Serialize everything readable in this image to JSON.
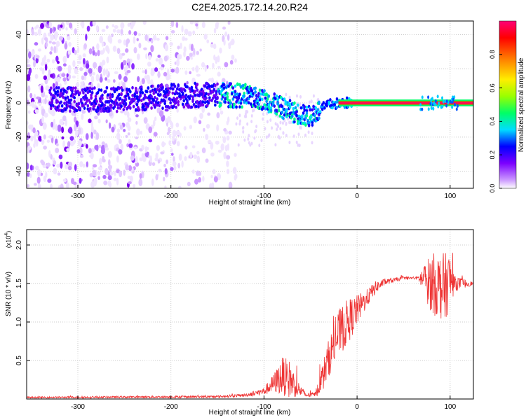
{
  "title": "C2E4.2025.172.14.20.R24",
  "chart_data": [
    {
      "type": "heatmap",
      "xlabel": "Height of straight line (km)",
      "ylabel": "Frequency (Hz)",
      "xlim": [
        -355,
        125
      ],
      "ylim": [
        -50,
        48
      ],
      "xticks": [
        -300,
        -200,
        -100,
        0,
        100
      ],
      "yticks": [
        -40,
        -20,
        0,
        20,
        40
      ],
      "grid": true,
      "colorbar": {
        "label": "Normalized spectral amplitude",
        "range": [
          0,
          1
        ],
        "ticks": [
          "0.0",
          "0.2",
          "0.4",
          "0.6",
          "0.8"
        ],
        "colors": [
          "#ffffff",
          "#cc99ff",
          "#7b00ff",
          "#0000ff",
          "#00ddff",
          "#00ff66",
          "#99ff00",
          "#ffee00",
          "#ff7700",
          "#ff0000",
          "#ff0077"
        ]
      },
      "center_track": [
        {
          "x": -355,
          "freq": 2
        },
        {
          "x": -250,
          "freq": 2
        },
        {
          "x": -200,
          "freq": 4
        },
        {
          "x": -150,
          "freq": 5
        },
        {
          "x": -120,
          "freq": 4
        },
        {
          "x": -100,
          "freq": 2
        },
        {
          "x": -80,
          "freq": -3
        },
        {
          "x": -60,
          "freq": -7
        },
        {
          "x": -50,
          "freq": -8
        },
        {
          "x": -40,
          "freq": -4
        },
        {
          "x": -30,
          "freq": -1
        },
        {
          "x": -15,
          "freq": 0
        },
        {
          "x": 0,
          "freq": 0
        },
        {
          "x": 125,
          "freq": 0
        }
      ]
    },
    {
      "type": "line",
      "xlabel": "Height of straight line (km)",
      "ylabel": "SNR (10 * v/v)",
      "scale_label": "(x10",
      "scale_exp": "4",
      "xlim": [
        -355,
        125
      ],
      "ylim": [
        0,
        2.2
      ],
      "xticks": [
        -300,
        -200,
        -100,
        0,
        100
      ],
      "yticks": [
        "0.5",
        "1.0",
        "1.5",
        "2.0"
      ],
      "grid": true,
      "series": [
        {
          "color": "#ee3333",
          "envelope": [
            {
              "x": -355,
              "mean": 0.02,
              "noise": 0.01
            },
            {
              "x": -150,
              "mean": 0.03,
              "noise": 0.015
            },
            {
              "x": -120,
              "mean": 0.05,
              "noise": 0.02
            },
            {
              "x": -100,
              "mean": 0.1,
              "noise": 0.05
            },
            {
              "x": -90,
              "mean": 0.2,
              "noise": 0.12
            },
            {
              "x": -80,
              "mean": 0.3,
              "noise": 0.25
            },
            {
              "x": -72,
              "mean": 0.25,
              "noise": 0.25
            },
            {
              "x": -65,
              "mean": 0.15,
              "noise": 0.12
            },
            {
              "x": -55,
              "mean": 0.05,
              "noise": 0.03
            },
            {
              "x": -45,
              "mean": 0.06,
              "noise": 0.03
            },
            {
              "x": -38,
              "mean": 0.25,
              "noise": 0.18
            },
            {
              "x": -30,
              "mean": 0.55,
              "noise": 0.25
            },
            {
              "x": -20,
              "mean": 0.85,
              "noise": 0.3
            },
            {
              "x": -10,
              "mean": 1.0,
              "noise": 0.3
            },
            {
              "x": 0,
              "mean": 1.15,
              "noise": 0.2
            },
            {
              "x": 10,
              "mean": 1.3,
              "noise": 0.12
            },
            {
              "x": 20,
              "mean": 1.45,
              "noise": 0.08
            },
            {
              "x": 30,
              "mean": 1.52,
              "noise": 0.04
            },
            {
              "x": 50,
              "mean": 1.57,
              "noise": 0.02
            },
            {
              "x": 65,
              "mean": 1.57,
              "noise": 0.02
            },
            {
              "x": 72,
              "mean": 1.55,
              "noise": 0.2
            },
            {
              "x": 80,
              "mean": 1.5,
              "noise": 0.4
            },
            {
              "x": 95,
              "mean": 1.45,
              "noise": 0.45
            },
            {
              "x": 100,
              "mean": 1.55,
              "noise": 0.35
            },
            {
              "x": 105,
              "mean": 1.5,
              "noise": 0.1
            },
            {
              "x": 125,
              "mean": 1.5,
              "noise": 0.02
            }
          ]
        }
      ]
    }
  ]
}
